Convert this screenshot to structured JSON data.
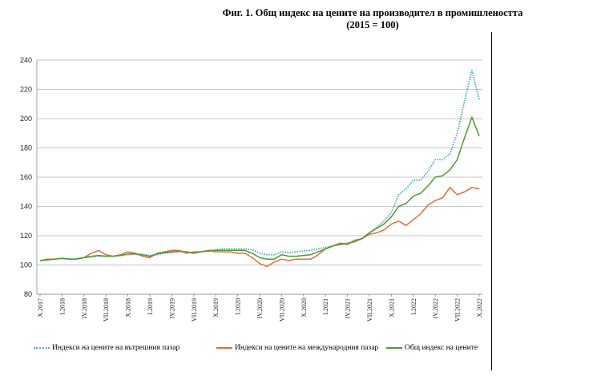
{
  "chart_data": {
    "type": "line",
    "title": "Фиг. 1. Общ индекс на цените на производител в промишлеността",
    "subtitle": "(2015 = 100)",
    "xlabel": "",
    "ylabel": "",
    "ylim": [
      80,
      240
    ],
    "yticks": [
      80,
      100,
      120,
      140,
      160,
      180,
      200,
      220,
      240
    ],
    "grid": true,
    "x": [
      "X.2017",
      "XI.2017",
      "XII.2017",
      "I.2018",
      "II.2018",
      "III.2018",
      "IV.2018",
      "V.2018",
      "VI.2018",
      "VII.2018",
      "VIII.2018",
      "IX.2018",
      "X.2018",
      "XI.2018",
      "XII.2018",
      "I.2019",
      "II.2019",
      "III.2019",
      "IV.2019",
      "V.2019",
      "VI.2019",
      "VII.2019",
      "VIII.2019",
      "IX.2019",
      "X.2019",
      "XI.2019",
      "XII.2019",
      "I.2020",
      "II.2020",
      "III.2020",
      "IV.2020",
      "V.2020",
      "VI.2020",
      "VII.2020",
      "VIII.2020",
      "IX.2020",
      "X.2020",
      "XI.2020",
      "XII.2020",
      "I.2021",
      "II.2021",
      "III.2021",
      "IV.2021",
      "V.2021",
      "VI.2021",
      "VII.2021",
      "VIII.2021",
      "IX.2021",
      "X.2021",
      "XI.2021",
      "XII.2021",
      "I.2022",
      "II.2022",
      "III.2022",
      "IV.2022",
      "V.2022",
      "VI.2022",
      "VII.2022",
      "VIII.2022",
      "IX.2022",
      "X.2022"
    ],
    "xtick_labels": [
      "X.2017",
      "I.2018",
      "IV.2018",
      "VII.2018",
      "X.2018",
      "I.2019",
      "IV.2019",
      "VII.2019",
      "X.2019",
      "I.2020",
      "IV.2020",
      "VII.2020",
      "X.2020",
      "I.2021",
      "IV.2021",
      "VII.2021",
      "X.2021",
      "I.2022",
      "IV.2022",
      "VII.2022",
      "X.2022"
    ],
    "series": [
      {
        "name": "Индекси на цените на вътрешния пазар",
        "color": "#4bacc6",
        "style": "dotted",
        "values": [
          103,
          103.5,
          104,
          104.5,
          104,
          104.5,
          105,
          105.5,
          106,
          106,
          106,
          106.5,
          107,
          107.5,
          107,
          106.5,
          107,
          108,
          108.5,
          109,
          109,
          108,
          109,
          110,
          110.5,
          111,
          111,
          111,
          111,
          110.5,
          108,
          107,
          107,
          109,
          108.5,
          109,
          109.5,
          110,
          111,
          112,
          113,
          114,
          115,
          116,
          118,
          122,
          126,
          130,
          136,
          148,
          152,
          158,
          158,
          164,
          172,
          172,
          176,
          190,
          212,
          233,
          213
        ]
      },
      {
        "name": "Индекси на цените на международния пазар",
        "color": "#e46c3c",
        "style": "solid",
        "values": [
          103,
          104,
          104,
          104.5,
          104,
          104,
          105,
          108,
          110,
          107,
          106,
          107,
          109,
          108,
          106,
          105,
          108,
          109,
          110,
          110,
          108,
          109,
          109,
          110,
          109,
          109,
          109,
          108,
          108,
          105,
          101,
          99,
          102,
          104,
          103,
          104,
          104,
          104,
          107,
          111,
          113,
          115,
          114,
          117,
          118,
          121,
          122,
          124,
          128,
          130,
          127,
          131,
          135,
          141,
          144,
          146,
          153,
          148,
          150,
          153,
          152
        ]
      },
      {
        "name": "Общ индекс на цените",
        "color": "#4e9a34",
        "style": "solid",
        "values": [
          103,
          103.5,
          104,
          104.5,
          104,
          104,
          105,
          106,
          106.5,
          106,
          106,
          106.5,
          107.5,
          107.5,
          107,
          106,
          107.5,
          108.5,
          109,
          109.5,
          109,
          108,
          109,
          109.5,
          110,
          110,
          110,
          110,
          110,
          108,
          105,
          104,
          104,
          107,
          106,
          106,
          106.5,
          107,
          109,
          111,
          113,
          114,
          114.5,
          116,
          118,
          122,
          125,
          128,
          133,
          140,
          142,
          147,
          149,
          154,
          160,
          161,
          165,
          172,
          187,
          201,
          188
        ]
      }
    ]
  }
}
